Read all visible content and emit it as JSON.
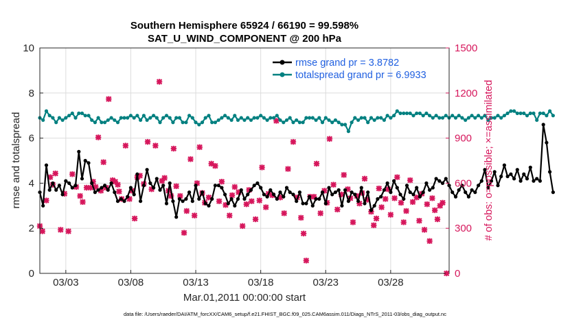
{
  "chart_data": {
    "type": "line",
    "title_line1": "Southern Hemisphere 65924 / 66190 = 99.598%",
    "title_line2": "SAT_U_WIND_COMPONENT @ 200 hPa",
    "xlabel": "Mar.01,2011 00:00:00 start",
    "ylabel_left": "rmse and totalspread",
    "ylabel_right": "# of obs: o=possible; ×=assimilated",
    "footnote": "data file: /Users/raeder/DAI/ATM_forcXX/CAM6_setup/f.e21.FHIST_BGC.f09_025.CAM6assim.011/Diags_NTrS_2011-03/obs_diag_output.nc",
    "xlim": [
      1.0,
      32.5
    ],
    "xticks": [
      3,
      8,
      13,
      18,
      23,
      28
    ],
    "xtick_labels": [
      "03/03",
      "03/08",
      "03/13",
      "03/18",
      "03/23",
      "03/28"
    ],
    "ylim_left": [
      0,
      10
    ],
    "yticks_left": [
      0,
      2,
      4,
      6,
      8,
      10
    ],
    "ylim_right": [
      0,
      1500
    ],
    "yticks_right": [
      0,
      300,
      600,
      900,
      1200,
      1500
    ],
    "grid": true,
    "legend_position": "top-right",
    "colors": {
      "rmse": "#000000",
      "spread": "#008080",
      "obs": "#d6175c",
      "legend_text": "#1f5fe0"
    },
    "series": [
      {
        "name": "rmse grand pr = 3.8782",
        "axis": "left",
        "x_start": 1.0,
        "x_step": 0.25,
        "values": [
          3.6,
          3.0,
          4.8,
          3.7,
          4.0,
          3.7,
          3.9,
          3.5,
          4.1,
          4.0,
          3.8,
          3.9,
          5.4,
          4.2,
          5.0,
          4.9,
          4.0,
          3.6,
          3.7,
          3.8,
          3.9,
          3.7,
          4.0,
          3.6,
          3.2,
          3.3,
          3.2,
          3.4,
          3.8,
          3.5,
          4.4,
          3.2,
          3.9,
          4.6,
          4.0,
          3.8,
          4.2,
          3.7,
          3.9,
          3.1,
          4.0,
          3.2,
          2.5,
          3.3,
          3.2,
          3.3,
          3.6,
          3.2,
          3.9,
          3.3,
          3.6,
          3.1,
          3.0,
          3.3,
          3.9,
          3.9,
          3.8,
          3.5,
          3.1,
          3.3,
          3.0,
          3.3,
          3.7,
          3.3,
          3.5,
          3.7,
          3.9,
          4.0,
          3.8,
          3.5,
          3.4,
          3.7,
          3.5,
          3.3,
          3.6,
          3.4,
          3.8,
          3.6,
          3.5,
          3.2,
          3.6,
          3.1,
          3.1,
          3.4,
          3.0,
          3.3,
          3.3,
          3.6,
          3.1,
          3.8,
          3.5,
          3.6,
          3.7,
          3.0,
          3.7,
          3.2,
          3.6,
          3.5,
          3.2,
          3.8,
          3.1,
          3.6,
          2.8,
          3.0,
          3.3,
          3.4,
          3.7,
          4.0,
          3.6,
          4.1,
          3.8,
          3.5,
          3.3,
          3.9,
          3.6,
          3.5,
          3.8,
          3.4,
          3.6,
          4.0,
          3.7,
          3.8,
          4.2,
          4.1,
          4.0,
          4.2,
          3.9,
          3.6,
          3.4,
          3.7,
          3.9,
          3.6,
          3.4,
          3.7,
          3.6,
          3.9,
          4.1,
          4.6,
          3.8,
          4.1,
          4.5,
          3.9,
          4.3,
          4.8,
          4.3,
          4.4,
          4.2,
          4.6,
          4.1,
          4.4,
          4.2,
          4.7,
          4.1,
          4.2,
          4.1,
          6.6,
          5.8,
          4.5,
          3.6
        ]
      },
      {
        "name": "totalspread grand pr = 6.9933",
        "axis": "left",
        "x_start": 1.0,
        "x_step": 0.25,
        "values": [
          6.9,
          6.8,
          7.2,
          7.0,
          6.9,
          6.7,
          6.9,
          6.8,
          6.9,
          7.0,
          7.1,
          6.9,
          7.1,
          7.1,
          7.0,
          7.0,
          6.8,
          6.7,
          6.9,
          6.7,
          6.7,
          6.8,
          6.9,
          6.8,
          6.7,
          6.9,
          6.9,
          6.9,
          7.0,
          6.9,
          7.0,
          6.8,
          7.0,
          6.8,
          6.9,
          7.0,
          6.9,
          6.7,
          6.9,
          7.0,
          6.9,
          6.7,
          6.9,
          6.9,
          6.7,
          6.7,
          7.0,
          6.9,
          6.7,
          6.6,
          6.7,
          6.9,
          7.0,
          6.7,
          6.7,
          6.8,
          6.9,
          7.0,
          6.9,
          6.8,
          7.0,
          6.8,
          6.9,
          6.8,
          6.9,
          6.8,
          6.9,
          6.9,
          7.0,
          6.9,
          6.8,
          6.9,
          6.9,
          7.0,
          6.8,
          6.7,
          6.8,
          6.9,
          6.7,
          6.8,
          6.7,
          6.7,
          6.9,
          6.9,
          6.9,
          6.8,
          6.9,
          6.7,
          6.9,
          6.8,
          6.7,
          6.8,
          6.7,
          6.6,
          6.6,
          6.3,
          6.7,
          6.9,
          6.8,
          6.9,
          6.9,
          6.7,
          6.9,
          6.8,
          6.9,
          6.9,
          6.8,
          7.0,
          6.9,
          7.0,
          7.2,
          7.1,
          7.1,
          7.1,
          7.1,
          7.0,
          7.1,
          7.1,
          7.0,
          7.1,
          7.0,
          6.9,
          7.0,
          6.9,
          6.9,
          7.0,
          6.9,
          7.0,
          6.9,
          7.0,
          6.9,
          6.8,
          6.9,
          7.0,
          6.9,
          7.0,
          6.9,
          7.0,
          6.8,
          6.9,
          6.9,
          7.0,
          6.9,
          7.0,
          7.1,
          7.2,
          7.2,
          7.1,
          7.1,
          7.1,
          7.0,
          7.1,
          7.1,
          6.8,
          7.1,
          7.1,
          7.0,
          7.2,
          7.0
        ]
      },
      {
        "name": "# of obs assimilated",
        "axis": "right",
        "points": [
          [
            1.0,
            315
          ],
          [
            1.2,
            280
          ],
          [
            1.5,
            485
          ],
          [
            1.8,
            640
          ],
          [
            2.0,
            590
          ],
          [
            2.2,
            665
          ],
          [
            2.6,
            290
          ],
          [
            2.9,
            530
          ],
          [
            3.2,
            280
          ],
          [
            3.5,
            660
          ],
          [
            3.8,
            575
          ],
          [
            4.1,
            515
          ],
          [
            4.3,
            475
          ],
          [
            4.6,
            570
          ],
          [
            4.9,
            570
          ],
          [
            5.1,
            610
          ],
          [
            5.3,
            575
          ],
          [
            5.5,
            905
          ],
          [
            5.7,
            550
          ],
          [
            5.9,
            740
          ],
          [
            6.1,
            570
          ],
          [
            6.3,
            1160
          ],
          [
            6.6,
            620
          ],
          [
            6.8,
            610
          ],
          [
            7.0,
            590
          ],
          [
            7.1,
            545
          ],
          [
            7.3,
            495
          ],
          [
            7.6,
            850
          ],
          [
            7.9,
            495
          ],
          [
            8.1,
            550
          ],
          [
            8.3,
            365
          ],
          [
            8.5,
            640
          ],
          [
            8.7,
            650
          ],
          [
            9.0,
            595
          ],
          [
            9.3,
            875
          ],
          [
            9.6,
            560
          ],
          [
            9.9,
            850
          ],
          [
            10.2,
            1275
          ],
          [
            10.4,
            615
          ],
          [
            10.6,
            635
          ],
          [
            10.9,
            550
          ],
          [
            11.1,
            515
          ],
          [
            11.3,
            830
          ],
          [
            11.5,
            580
          ],
          [
            11.8,
            515
          ],
          [
            12.1,
            270
          ],
          [
            12.3,
            415
          ],
          [
            12.6,
            760
          ],
          [
            12.9,
            385
          ],
          [
            13.1,
            600
          ],
          [
            13.3,
            840
          ],
          [
            13.5,
            535
          ],
          [
            13.7,
            470
          ],
          [
            14.0,
            505
          ],
          [
            14.2,
            730
          ],
          [
            14.5,
            715
          ],
          [
            14.8,
            480
          ],
          [
            15.0,
            610
          ],
          [
            15.3,
            455
          ],
          [
            15.6,
            385
          ],
          [
            15.8,
            520
          ],
          [
            16.0,
            575
          ],
          [
            16.3,
            540
          ],
          [
            16.6,
            315
          ],
          [
            16.9,
            460
          ],
          [
            17.1,
            555
          ],
          [
            17.3,
            480
          ],
          [
            17.6,
            360
          ],
          [
            17.9,
            485
          ],
          [
            18.1,
            705
          ],
          [
            18.4,
            440
          ],
          [
            18.6,
            530
          ],
          [
            18.9,
            520
          ],
          [
            19.2,
            1015
          ],
          [
            19.5,
            505
          ],
          [
            19.8,
            400
          ],
          [
            20.1,
            695
          ],
          [
            20.5,
            875
          ],
          [
            20.8,
            505
          ],
          [
            21.1,
            370
          ],
          [
            21.3,
            265
          ],
          [
            21.5,
            85
          ],
          [
            21.8,
            510
          ],
          [
            22.1,
            510
          ],
          [
            22.3,
            730
          ],
          [
            22.6,
            400
          ],
          [
            22.9,
            550
          ],
          [
            23.1,
            470
          ],
          [
            23.3,
            895
          ],
          [
            23.6,
            590
          ],
          [
            23.9,
            425
          ],
          [
            24.2,
            525
          ],
          [
            24.4,
            655
          ],
          [
            24.7,
            560
          ],
          [
            24.9,
            500
          ],
          [
            25.1,
            340
          ],
          [
            25.4,
            515
          ],
          [
            25.6,
            465
          ],
          [
            25.8,
            535
          ],
          [
            26.0,
            630
          ],
          [
            26.2,
            490
          ],
          [
            26.5,
            410
          ],
          [
            26.7,
            320
          ],
          [
            26.9,
            365
          ],
          [
            27.1,
            565
          ],
          [
            27.3,
            440
          ],
          [
            27.6,
            495
          ],
          [
            27.8,
            560
          ],
          [
            28.0,
            390
          ],
          [
            28.3,
            500
          ],
          [
            28.5,
            640
          ],
          [
            28.8,
            470
          ],
          [
            29.0,
            340
          ],
          [
            29.2,
            415
          ],
          [
            29.5,
            620
          ],
          [
            29.7,
            475
          ],
          [
            30.0,
            505
          ],
          [
            30.2,
            350
          ],
          [
            30.4,
            530
          ],
          [
            30.6,
            290
          ],
          [
            30.8,
            460
          ],
          [
            31.0,
            215
          ],
          [
            31.2,
            500
          ],
          [
            31.4,
            420
          ],
          [
            31.6,
            360
          ],
          [
            31.8,
            450
          ],
          [
            32.0,
            470
          ],
          [
            32.3,
            0
          ]
        ]
      }
    ]
  }
}
